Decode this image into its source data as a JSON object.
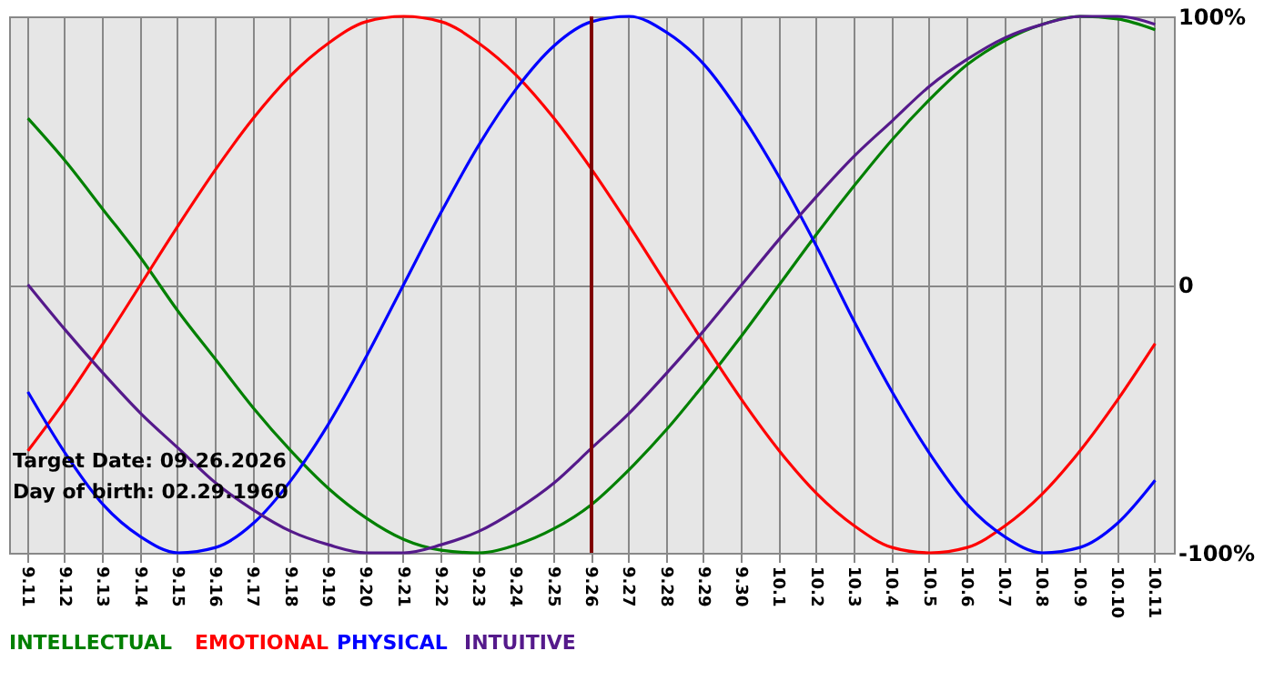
{
  "chart_data": {
    "type": "line",
    "categories": [
      "9.11",
      "9.12",
      "9.13",
      "9.14",
      "9.15",
      "9.16",
      "9.17",
      "9.18",
      "9.19",
      "9.20",
      "9.21",
      "9.22",
      "9.23",
      "9.24",
      "9.25",
      "9.26",
      "9.27",
      "9.28",
      "9.29",
      "9.30",
      "10.1",
      "10.2",
      "10.3",
      "10.4",
      "10.5",
      "10.6",
      "10.7",
      "10.8",
      "10.9",
      "10.10",
      "10.11"
    ],
    "series": [
      {
        "name": "INTELLECTUAL",
        "color": "#008000",
        "values": [
          62,
          46,
          28,
          10,
          -10,
          -28,
          -46,
          -62,
          -76,
          -87,
          -95,
          -99,
          -100,
          -97,
          -91,
          -82,
          -69,
          -54,
          -37,
          -19,
          0,
          19,
          37,
          54,
          69,
          82,
          91,
          97,
          100,
          99,
          95
        ]
      },
      {
        "name": "EMOTIONAL",
        "color": "#ff0000",
        "values": [
          -62,
          -43,
          -22,
          0,
          22,
          43,
          62,
          78,
          90,
          98,
          100,
          98,
          90,
          78,
          62,
          43,
          22,
          0,
          -22,
          -43,
          -62,
          -78,
          -90,
          -98,
          -100,
          -98,
          -90,
          -78,
          -62,
          -43,
          -22
        ]
      },
      {
        "name": "PHYSICAL",
        "color": "#0000ff",
        "values": [
          -40,
          -63,
          -82,
          -94,
          -100,
          -98,
          -89,
          -73,
          -52,
          -27,
          0,
          27,
          52,
          73,
          89,
          98,
          100,
          94,
          82,
          63,
          40,
          14,
          -14,
          -40,
          -63,
          -82,
          -94,
          -100,
          -98,
          -89,
          -73
        ]
      },
      {
        "name": "INTUITIVE",
        "color": "#551a8b",
        "values": [
          0,
          -17,
          -33,
          -48,
          -61,
          -74,
          -84,
          -92,
          -97,
          -100,
          -100,
          -97,
          -92,
          -84,
          -74,
          -61,
          -48,
          -33,
          -17,
          0,
          17,
          33,
          48,
          61,
          74,
          84,
          92,
          97,
          100,
          100,
          97
        ]
      }
    ],
    "ylim": [
      -100,
      100
    ],
    "yticks": [
      {
        "value": 100,
        "label": "100%"
      },
      0,
      {
        "value": -100,
        "label": "-100%"
      }
    ],
    "grid": true,
    "legend": "bottom",
    "marker": "none",
    "line_style": "solid",
    "ref_lines": [
      {
        "axis": "x",
        "value": "9.26",
        "color": "#800000"
      }
    ],
    "annotations": [
      "Target Date: 09.26.2026",
      "Day of birth: 02.29.1960"
    ]
  }
}
